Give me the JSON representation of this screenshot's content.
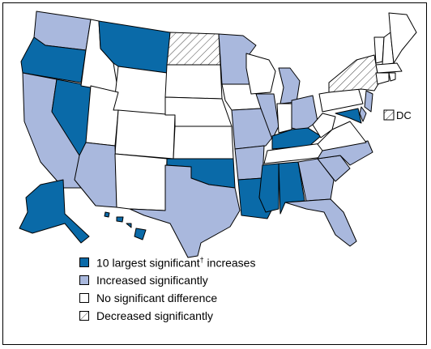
{
  "colors": {
    "largest_increase": "#0a6aa8",
    "increased": "#a9b8dd",
    "no_difference": "#ffffff",
    "decreased_hatch": "#555555"
  },
  "map": {
    "dc_label": "DC",
    "categories": {
      "largest_increase": [
        "OR",
        "NV",
        "MT",
        "OK",
        "KY",
        "LA",
        "MS",
        "AL",
        "AK",
        "HI",
        "MD"
      ],
      "increased": [
        "WA",
        "CA",
        "AZ",
        "TX",
        "MN",
        "MO",
        "AR",
        "IL",
        "MI",
        "OH",
        "GA",
        "SC",
        "NC",
        "FL",
        "NJ",
        "DE"
      ],
      "decreased": [
        "ND",
        "NY"
      ],
      "none": [
        "ID",
        "WY",
        "CO",
        "UT",
        "NM",
        "SD",
        "NE",
        "KS",
        "IA",
        "WI",
        "IN",
        "TN",
        "WV",
        "VA",
        "PA",
        "VT",
        "NH",
        "ME",
        "MA",
        "CT",
        "RI"
      ]
    }
  },
  "legend": {
    "items": [
      {
        "label": "10 largest significant",
        "sup": "†",
        "suffix": " increases",
        "category": "largest_increase"
      },
      {
        "label": "Increased significantly",
        "sup": "",
        "suffix": "",
        "category": "increased"
      },
      {
        "label": "No significant difference",
        "sup": "",
        "suffix": "",
        "category": "no_difference"
      },
      {
        "label": "Decreased significantly",
        "sup": "",
        "suffix": "",
        "category": "decreased"
      }
    ]
  }
}
